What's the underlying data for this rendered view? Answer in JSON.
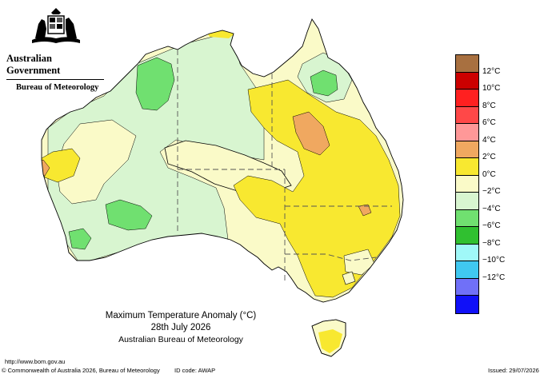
{
  "agency": {
    "government": "Australian Government",
    "bureau": "Bureau of Meteorology",
    "crest_icon": "coat-of-arms-icon"
  },
  "map_title": {
    "line1": "Maximum Temperature Anomaly (°C)",
    "line2": "28th July 2026",
    "line3": "Australian Bureau of Meteorology"
  },
  "footer": {
    "url": "http://www.bom.gov.au",
    "copyright": "© Commonwealth of Australia 2026, Bureau of Meteorology",
    "id_code": "ID code: AWAP",
    "issued": "Issued: 29/07/2026"
  },
  "legend": {
    "items": [
      {
        "label": "",
        "color": "#a87040"
      },
      {
        "label": "12°C",
        "color": "#cc0000"
      },
      {
        "label": "10°C",
        "color": "#ff2020"
      },
      {
        "label": "8°C",
        "color": "#ff4848"
      },
      {
        "label": "6°C",
        "color": "#ff9898"
      },
      {
        "label": "4°C",
        "color": "#f0a860"
      },
      {
        "label": "2°C",
        "color": "#f8e830"
      },
      {
        "label": "0°C",
        "color": "#fafac8"
      },
      {
        "label": "−2°C",
        "color": "#d8f5d0"
      },
      {
        "label": "−4°C",
        "color": "#70e070"
      },
      {
        "label": "−6°C",
        "color": "#30c030"
      },
      {
        "label": "−8°C",
        "color": "#a0f8f8"
      },
      {
        "label": "−10°C",
        "color": "#40c8f0"
      },
      {
        "label": "−12°C",
        "color": "#7070f8"
      },
      {
        "label": "",
        "color": "#1010f8"
      }
    ]
  }
}
